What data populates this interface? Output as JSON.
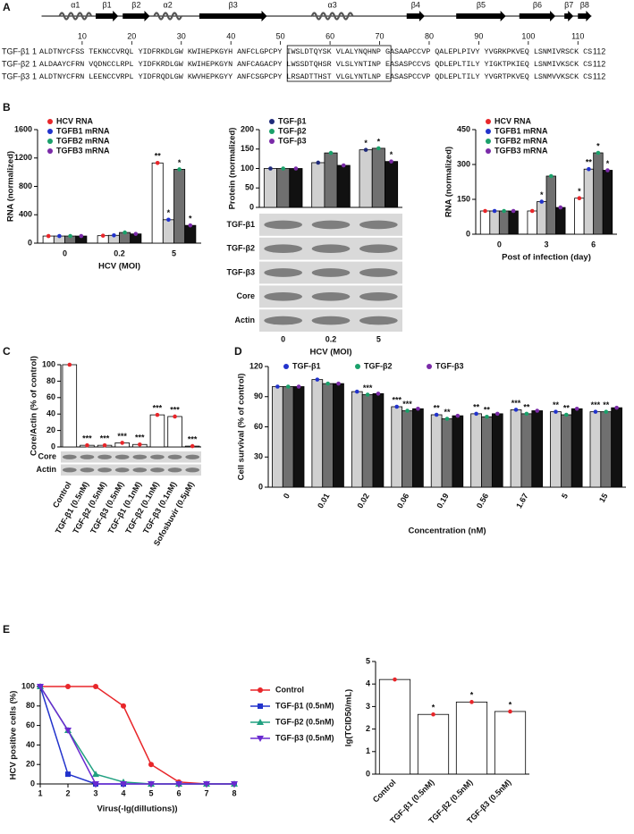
{
  "panel_labels": [
    "A",
    "B",
    "C",
    "D",
    "E"
  ],
  "alignment": {
    "secondary_structure": [
      "α1",
      "β1",
      "β2",
      "α2",
      "β3",
      "α3",
      "β4",
      "β5",
      "β6",
      "β7",
      "β8"
    ],
    "residue_ticks": [
      10,
      20,
      30,
      40,
      50,
      60,
      70,
      80,
      90,
      100,
      110
    ],
    "rows": [
      {
        "name": "TGF-β1",
        "start": "1",
        "sequence": "ALDTNYCFSS TEKNCCVRQL YIDFRKDLGW KWIHEPKGYH ANFCLGPCPY IWSLDTQYSK VLALYNQHNP GASAAPCCVP QALEPLPIVY YVGRKPKVEQ LSNMIVRSCK CS",
        "end": "112"
      },
      {
        "name": "TGF-β2",
        "start": "1",
        "sequence": "ALDAAYCFRN VQDNCCLRPL YIDFKRDLGW KWIHEPKGYN ANFCAGACPY LWSSDTQHSR VLSLYNTINP EASASPCCVS QDLEPLTILY YIGKTPKIEQ LSNMIVKSCK CS",
        "end": "112"
      },
      {
        "name": "TGF-β3",
        "start": "1",
        "sequence": "ALDTNYCFRN LEENCCVRPL YIDFRQDLGW KWVHEPKGYY ANFCSGPCPY LRSADTTHST VLGLYNTLNP EASASPCCVP QDLEPLTILY YVGRTPKVEQ LSNMVVKSCK CS",
        "end": "112"
      }
    ]
  },
  "chart_data": [
    {
      "type": "bar",
      "ylabel": "RNA (normalized)",
      "xlabel": "HCV (MOI)",
      "categories": [
        "0",
        "0.2",
        "5"
      ],
      "ylim": [
        0,
        1600
      ],
      "yticks": [
        0,
        400,
        800,
        1200,
        1600
      ],
      "legend": "upper left",
      "series": [
        {
          "name": "HCV RNA",
          "color": "#e8262a",
          "fill": "#ffffff",
          "values": [
            100,
            105,
            1130
          ],
          "significance": [
            null,
            null,
            "**"
          ]
        },
        {
          "name": "TGFB1 mRNA",
          "color": "#2233cc",
          "fill": "#d0d0d0",
          "values": [
            100,
            110,
            330
          ],
          "significance": [
            null,
            null,
            "*"
          ]
        },
        {
          "name": "TGFB2 mRNA",
          "color": "#1aa06a",
          "fill": "#707070",
          "values": [
            100,
            150,
            1040
          ],
          "significance": [
            null,
            null,
            "*"
          ]
        },
        {
          "name": "TGFB3 mRNA",
          "color": "#7a2aa8",
          "fill": "#111111",
          "values": [
            100,
            130,
            250
          ],
          "significance": [
            null,
            null,
            "*"
          ]
        }
      ]
    },
    {
      "type": "bar",
      "ylabel": "Protein (normalized)",
      "xlabel": "HCV (MOI)",
      "categories": [
        "0",
        "0.2",
        "5"
      ],
      "ylim": [
        0,
        200
      ],
      "yticks": [
        0,
        50,
        100,
        150,
        200
      ],
      "legend": "upper left",
      "blot_labels": [
        "TGF-β1",
        "TGF-β2",
        "TGF-β3",
        "Core",
        "Actin"
      ],
      "series": [
        {
          "name": "TGF-β1",
          "color": "#1f2a7a",
          "fill": "#d0d0d0",
          "values": [
            100,
            115,
            148
          ],
          "significance": [
            null,
            null,
            "*"
          ]
        },
        {
          "name": "TGF-β2",
          "color": "#1aa06a",
          "fill": "#707070",
          "values": [
            100,
            140,
            152
          ],
          "significance": [
            null,
            null,
            "*"
          ]
        },
        {
          "name": "TGF-β3",
          "color": "#7a2aa8",
          "fill": "#111111",
          "values": [
            100,
            108,
            118
          ],
          "significance": [
            null,
            null,
            "*"
          ]
        }
      ]
    },
    {
      "type": "bar",
      "ylabel": "RNA (normalized)",
      "xlabel": "Post of infection (day)",
      "categories": [
        "0",
        "3",
        "6"
      ],
      "ylim": [
        0,
        450
      ],
      "yticks": [
        0,
        150,
        300,
        450
      ],
      "legend": "upper left",
      "series": [
        {
          "name": "HCV RNA",
          "color": "#e8262a",
          "fill": "#ffffff",
          "values": [
            100,
            100,
            155
          ],
          "significance": [
            null,
            null,
            "*"
          ]
        },
        {
          "name": "TGFB1 mRNA",
          "color": "#2233cc",
          "fill": "#d0d0d0",
          "values": [
            100,
            140,
            280
          ],
          "significance": [
            null,
            "*",
            "**"
          ]
        },
        {
          "name": "TGFB2 mRNA",
          "color": "#1aa06a",
          "fill": "#707070",
          "values": [
            100,
            250,
            350
          ],
          "significance": [
            null,
            null,
            "*"
          ]
        },
        {
          "name": "TGFB3 mRNA",
          "color": "#7a2aa8",
          "fill": "#111111",
          "values": [
            100,
            115,
            275
          ],
          "significance": [
            null,
            null,
            "*"
          ]
        }
      ]
    },
    {
      "type": "bar",
      "ylabel": "Core/Actin (% of control)",
      "categories": [
        "Control",
        "TGF-β1 (0.5nM)",
        "TGF-β2 (0.5nM)",
        "TGF-β3 (0.5nM)",
        "TGF-β1 (0.1nM)",
        "TGF-β2 (0.1nM)",
        "TGF-β3 (0.1nM)",
        "Sofosbuvir (0.5μM)"
      ],
      "values": [
        100,
        2,
        2,
        5,
        3,
        39,
        37,
        1
      ],
      "significance": [
        null,
        "***",
        "***",
        "***",
        "***",
        "***",
        "***",
        "***"
      ],
      "color": "#e8262a",
      "fill": "#ffffff",
      "ylim": [
        0,
        100
      ],
      "yticks": [
        0,
        20,
        40,
        60,
        80,
        100
      ],
      "blot_labels": [
        "Core",
        "Actin"
      ]
    },
    {
      "type": "bar",
      "ylabel": "Cell survival (% of control)",
      "xlabel": "Concentration (nM)",
      "categories": [
        "0",
        "0.01",
        "0.02",
        "0.06",
        "0.19",
        "0.56",
        "1.67",
        "5",
        "15"
      ],
      "ylim": [
        0,
        120
      ],
      "yticks": [
        0,
        30,
        60,
        90,
        120
      ],
      "legend": "top",
      "series": [
        {
          "name": "TGF-β1",
          "color": "#2233cc",
          "fill": "#d0d0d0",
          "values": [
            100,
            107,
            95,
            80,
            72,
            73,
            77,
            75,
            75
          ],
          "significance": [
            null,
            null,
            null,
            "***",
            "**",
            "**",
            "***",
            "**",
            "***"
          ]
        },
        {
          "name": "TGF-β2",
          "color": "#1aa06a",
          "fill": "#707070",
          "values": [
            100,
            103,
            92,
            76,
            68,
            70,
            73,
            72,
            75
          ],
          "significance": [
            null,
            null,
            "***",
            "***",
            "**",
            "**",
            "**",
            "**",
            "**"
          ]
        },
        {
          "name": "TGF-β3",
          "color": "#7a2aa8",
          "fill": "#111111",
          "values": [
            100,
            103,
            93,
            78,
            71,
            73,
            76,
            78,
            79
          ]
        }
      ]
    },
    {
      "type": "line",
      "xlabel": "Virus(-lg(dillutions))",
      "ylabel": "HCV positive cells (%)",
      "x": [
        1,
        2,
        3,
        4,
        5,
        6,
        7,
        8
      ],
      "xlim": [
        1,
        8
      ],
      "xticks": [
        1,
        2,
        3,
        4,
        5,
        6,
        7,
        8
      ],
      "ylim": [
        0,
        100
      ],
      "yticks": [
        0,
        20,
        40,
        60,
        80,
        100
      ],
      "legend": "right",
      "series": [
        {
          "name": "Control",
          "color": "#e8262a",
          "marker": "circle",
          "values": [
            100,
            100,
            100,
            80,
            20,
            2,
            0,
            0
          ]
        },
        {
          "name": "TGF-β1 (0.5nM)",
          "color": "#2233cc",
          "marker": "square",
          "values": [
            100,
            10,
            0,
            0,
            0,
            0,
            0,
            0
          ]
        },
        {
          "name": "TGF-β2 (0.5nM)",
          "color": "#20a080",
          "marker": "triangle",
          "values": [
            100,
            55,
            10,
            2,
            0,
            0,
            0,
            0
          ]
        },
        {
          "name": "TGF-β3 (0.5nM)",
          "color": "#6a2ad0",
          "marker": "triangle-down",
          "values": [
            100,
            55,
            0,
            0,
            0,
            0,
            0,
            0
          ]
        }
      ]
    },
    {
      "type": "bar",
      "ylabel": "lg(TCID50/mL)",
      "categories": [
        "Control",
        "TGF-β1 (0.5nM)",
        "TGF-β2 (0.5nM)",
        "TGF-β3 (0.5nM)"
      ],
      "values": [
        4.2,
        2.65,
        3.2,
        2.78
      ],
      "significance": [
        null,
        "*",
        "*",
        "*"
      ],
      "color": "#e8262a",
      "fill": "#ffffff",
      "ylim": [
        0,
        5
      ],
      "yticks": [
        0,
        1,
        2,
        3,
        4,
        5
      ]
    }
  ]
}
